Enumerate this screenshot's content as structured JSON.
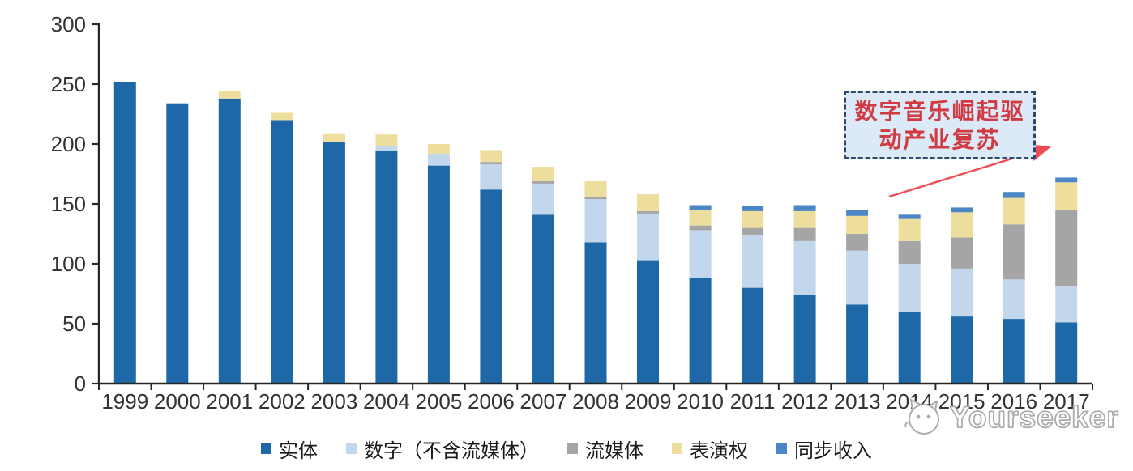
{
  "chart_data": {
    "type": "bar",
    "stacked": true,
    "title": "",
    "xlabel": "",
    "ylabel": "",
    "ylim": [
      0,
      300
    ],
    "yticks": [
      0,
      50,
      100,
      150,
      200,
      250,
      300
    ],
    "grid": false,
    "legend_position": "bottom",
    "categories": [
      "1999",
      "2000",
      "2001",
      "2002",
      "2003",
      "2004",
      "2005",
      "2006",
      "2007",
      "2008",
      "2009",
      "2010",
      "2011",
      "2012",
      "2013",
      "2014",
      "2015",
      "2016",
      "2017"
    ],
    "series": [
      {
        "name": "实体",
        "color": "#1E68A7",
        "values": [
          252,
          234,
          238,
          220,
          202,
          194,
          182,
          162,
          141,
          118,
          103,
          88,
          80,
          74,
          66,
          60,
          56,
          54,
          51
        ]
      },
      {
        "name": "数字（不含流媒体）",
        "color": "#C2D7EC",
        "values": [
          0,
          0,
          0,
          0,
          0,
          4,
          10,
          21,
          26,
          36,
          39,
          40,
          44,
          45,
          45,
          40,
          40,
          33,
          30
        ]
      },
      {
        "name": "流媒体",
        "color": "#A5A5A5",
        "values": [
          0,
          0,
          0,
          0,
          0,
          0,
          0,
          2,
          2,
          2,
          2,
          4,
          6,
          11,
          14,
          19,
          26,
          46,
          64
        ]
      },
      {
        "name": "表演权",
        "color": "#EEDE9D",
        "values": [
          0,
          0,
          6,
          6,
          7,
          10,
          8,
          10,
          12,
          13,
          14,
          13,
          14,
          14,
          15,
          19,
          21,
          22,
          23
        ]
      },
      {
        "name": "同步收入",
        "color": "#4D86C5",
        "values": [
          0,
          0,
          0,
          0,
          0,
          0,
          0,
          0,
          0,
          0,
          0,
          4,
          4,
          5,
          5,
          3,
          4,
          5,
          4
        ]
      }
    ]
  },
  "annotation": {
    "line1": "数字音乐崛起驱",
    "line2": "动产业复苏"
  },
  "watermark": {
    "text": "Yourseeker",
    "logo": "cat-face-icon"
  },
  "colors": {
    "axis": "#262626",
    "label": "#333333",
    "annotation_border": "#2E4A6B",
    "annotation_fill": "#DCE9F6",
    "annotation_text": "#D03A42",
    "arrow": "#EF4B52",
    "watermark_outline": "#ABABAB"
  }
}
